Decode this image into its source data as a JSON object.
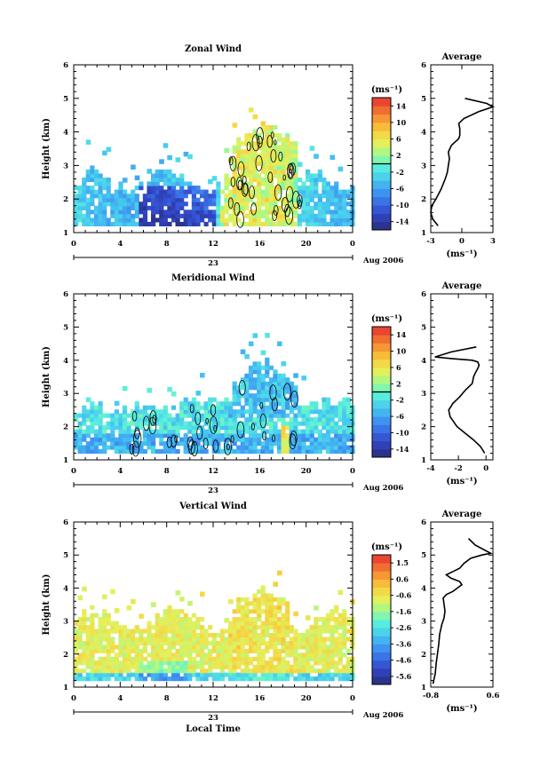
{
  "chart_data": [
    {
      "type": "heatmap",
      "title": "Zonal Wind",
      "ylabel": "Height (km)",
      "ylim": [
        1,
        6
      ],
      "yticks": [
        "1",
        "2",
        "3",
        "4",
        "5",
        "6"
      ],
      "xlim": [
        0,
        24
      ],
      "xticks": [
        "0",
        "4",
        "8",
        "12",
        "16",
        "20",
        "0"
      ],
      "day_label": "23",
      "date_label": "Aug 2006",
      "colorbar_unit": "(ms⁻¹)",
      "colorbar_ticks": [
        "14",
        "10",
        "6",
        "2",
        "-2",
        "-6",
        "-10",
        "-14"
      ],
      "colorbar_range": [
        -16,
        16
      ],
      "profile": {
        "title": "Average",
        "xlabel": "(ms⁻¹)",
        "xticks": [
          "-3",
          "0",
          "3"
        ],
        "xlim": [
          -3,
          3
        ],
        "ylim": [
          1,
          6
        ],
        "yticks": [
          "1",
          "2",
          "3",
          "4",
          "5",
          "6"
        ],
        "x": [
          -2.3,
          -2.8,
          -3.0,
          -2.9,
          -2.5,
          -2.0,
          -1.6,
          -1.4,
          -1.3,
          -1.2,
          -1.3,
          -1.0,
          -0.3,
          -0.2,
          -0.2,
          -0.3,
          0.2,
          1.6,
          3.0,
          2.4,
          0.3
        ],
        "y": [
          1.2,
          1.4,
          1.6,
          1.8,
          2.0,
          2.3,
          2.6,
          2.8,
          3.0,
          3.2,
          3.4,
          3.6,
          3.8,
          3.9,
          4.1,
          4.25,
          4.4,
          4.6,
          4.75,
          4.85,
          5.0
        ]
      }
    },
    {
      "type": "heatmap",
      "title": "Meridional Wind",
      "ylabel": "Height (km)",
      "ylim": [
        1,
        6
      ],
      "yticks": [
        "1",
        "2",
        "3",
        "4",
        "5",
        "6"
      ],
      "xlim": [
        0,
        24
      ],
      "xticks": [
        "0",
        "4",
        "8",
        "12",
        "16",
        "20",
        "0"
      ],
      "day_label": "23",
      "date_label": "Aug 2006",
      "colorbar_unit": "(ms⁻¹)",
      "colorbar_ticks": [
        "14",
        "10",
        "6",
        "2",
        "-2",
        "-6",
        "-10",
        "-14"
      ],
      "colorbar_range": [
        -16,
        16
      ],
      "profile": {
        "title": "Average",
        "xlabel": "(ms⁻¹)",
        "xticks": [
          "-4",
          "-2",
          "0"
        ],
        "xlim": [
          -4,
          0.5
        ],
        "ylim": [
          1,
          6
        ],
        "yticks": [
          "1",
          "2",
          "3",
          "4",
          "5",
          "6"
        ],
        "x": [
          -0.1,
          -0.4,
          -0.9,
          -1.5,
          -2.1,
          -2.6,
          -2.7,
          -2.4,
          -1.9,
          -1.5,
          -1.0,
          -0.9,
          -0.8,
          -0.6,
          -0.5,
          -0.6,
          -1.0,
          -2.5,
          -3.7,
          -2.5,
          -0.7
        ],
        "y": [
          1.2,
          1.4,
          1.6,
          1.8,
          2.0,
          2.3,
          2.5,
          2.7,
          2.9,
          3.1,
          3.3,
          3.5,
          3.6,
          3.75,
          3.85,
          3.95,
          4.0,
          4.05,
          4.1,
          4.25,
          4.4
        ]
      }
    },
    {
      "type": "heatmap",
      "title": "Vertical Wind",
      "ylabel": "Height (km)",
      "xlabel": "Local Time",
      "ylim": [
        1,
        6
      ],
      "yticks": [
        "1",
        "2",
        "3",
        "4",
        "5",
        "6"
      ],
      "xlim": [
        0,
        24
      ],
      "xticks": [
        "0",
        "4",
        "8",
        "12",
        "16",
        "20",
        "0"
      ],
      "day_label": "23",
      "date_label": "Aug 2006",
      "colorbar_unit": "(ms⁻¹)",
      "colorbar_ticks": [
        "1.5",
        "0.6",
        "-0.6",
        "-1.6",
        "-2.6",
        "-3.6",
        "-4.6",
        "-5.6"
      ],
      "colorbar_range": [
        -6.0,
        2.0
      ],
      "profile": {
        "title": "Average",
        "xlabel": "(ms⁻¹)",
        "xticks": [
          "-0.8",
          "0.6"
        ],
        "xlim": [
          -0.8,
          0.6
        ],
        "ylim": [
          1,
          6
        ],
        "yticks": [
          "1",
          "2",
          "3",
          "4",
          "5",
          "6"
        ],
        "x": [
          -0.75,
          -0.7,
          -0.68,
          -0.65,
          -0.62,
          -0.6,
          -0.55,
          -0.5,
          -0.48,
          -0.5,
          -0.52,
          -0.45,
          -0.3,
          -0.2,
          -0.1,
          -0.15,
          -0.35,
          -0.45,
          -0.3,
          -0.15,
          -0.05,
          0.1,
          0.35,
          0.55,
          0.2,
          0.05
        ],
        "y": [
          1.1,
          1.4,
          1.7,
          2.0,
          2.3,
          2.6,
          2.9,
          3.1,
          3.3,
          3.5,
          3.7,
          3.8,
          3.9,
          4.0,
          4.1,
          4.2,
          4.3,
          4.4,
          4.5,
          4.6,
          4.75,
          4.9,
          5.0,
          5.05,
          5.3,
          5.5
        ]
      }
    }
  ]
}
